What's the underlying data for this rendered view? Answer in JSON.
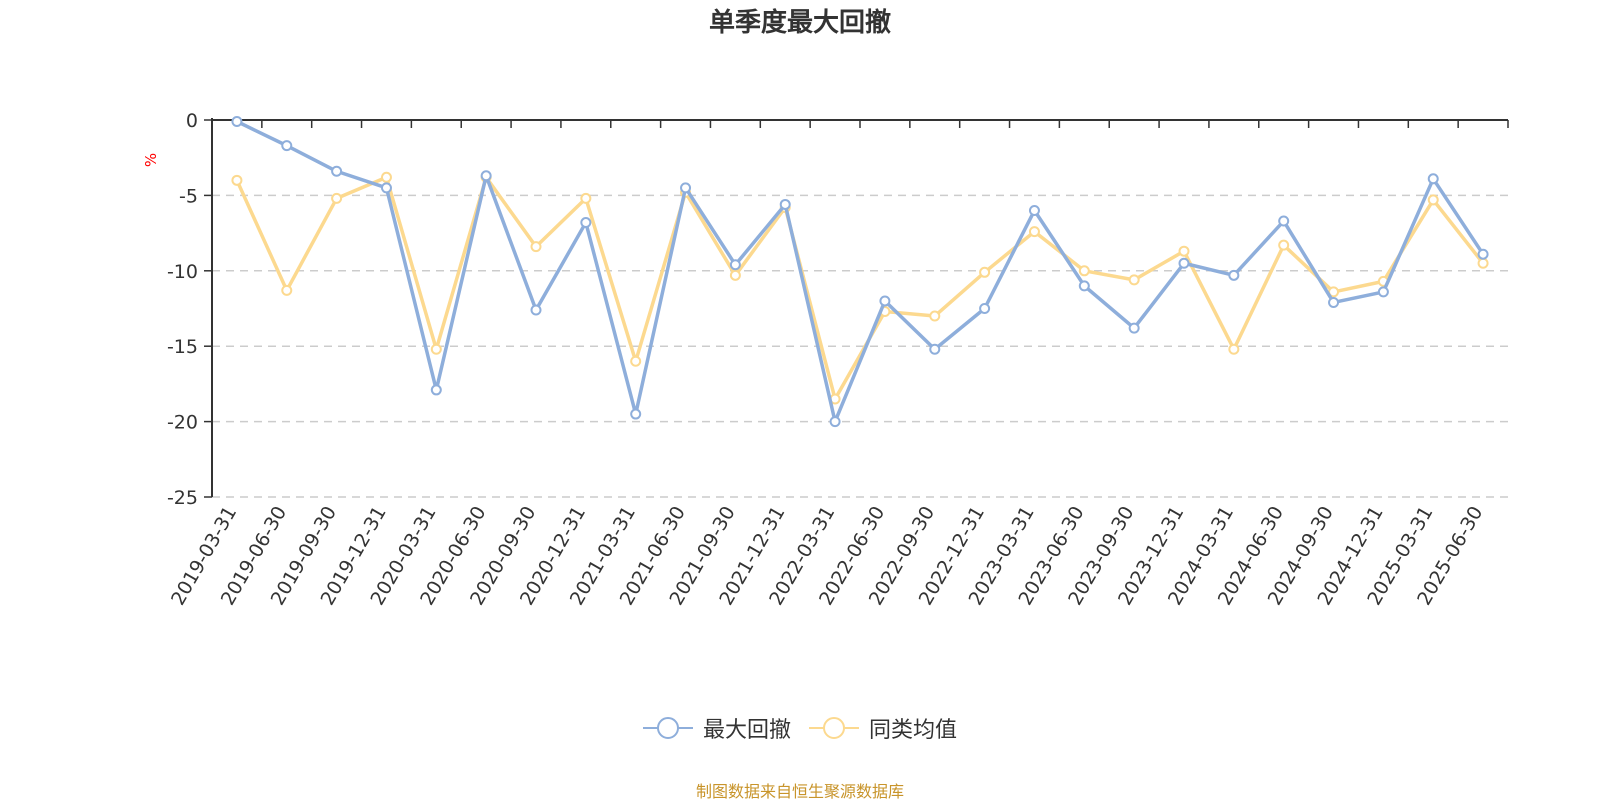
{
  "chart_data": {
    "type": "line",
    "title": "单季度最大回撤",
    "ylabel": "%",
    "xlabel": "",
    "ylim": [
      -25,
      0
    ],
    "yticks": [
      0,
      -5,
      -10,
      -15,
      -20,
      -25
    ],
    "grid": true,
    "legend_position": "bottom-center",
    "categories": [
      "2019-03-31",
      "2019-06-30",
      "2019-09-30",
      "2019-12-31",
      "2020-03-31",
      "2020-06-30",
      "2020-09-30",
      "2020-12-31",
      "2021-03-31",
      "2021-06-30",
      "2021-09-30",
      "2021-12-31",
      "2022-03-31",
      "2022-06-30",
      "2022-09-30",
      "2022-12-31",
      "2023-03-31",
      "2023-06-30",
      "2023-09-30",
      "2023-12-31",
      "2024-03-31",
      "2024-06-30",
      "2024-09-30",
      "2024-12-31",
      "2025-03-31",
      "2025-06-30"
    ],
    "series": [
      {
        "name": "最大回撤",
        "color": "#8eaedb",
        "values": [
          -0.1,
          -1.7,
          -3.4,
          -4.5,
          -17.9,
          -3.7,
          -12.6,
          -6.8,
          -19.5,
          -4.5,
          -9.6,
          -5.6,
          -20.0,
          -12.0,
          -15.2,
          -12.5,
          -6.0,
          -11.0,
          -13.8,
          -9.5,
          -10.3,
          -6.7,
          -12.1,
          -11.4,
          -3.9,
          -8.9
        ]
      },
      {
        "name": "同类均值",
        "color": "#fcd98f",
        "values": [
          -4.0,
          -11.3,
          -5.2,
          -3.8,
          -15.2,
          -3.8,
          -8.4,
          -5.2,
          -16.0,
          -4.8,
          -10.3,
          -5.8,
          -18.5,
          -12.7,
          -13.0,
          -10.1,
          -7.4,
          -10.0,
          -10.6,
          -8.7,
          -15.2,
          -8.3,
          -11.4,
          -10.7,
          -5.3,
          -9.5
        ]
      }
    ]
  },
  "footer": {
    "source": "制图数据来自恒生聚源数据库"
  }
}
